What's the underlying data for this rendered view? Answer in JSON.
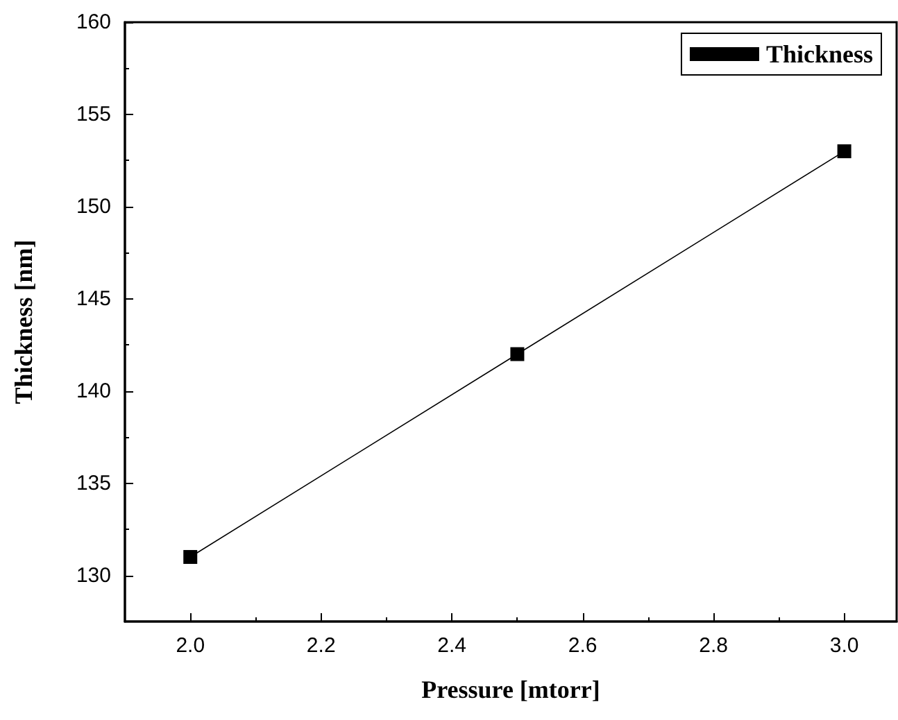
{
  "chart_data": {
    "type": "line",
    "xlabel": "Pressure [mtorr]",
    "ylabel": "Thickness [nm]",
    "x": [
      2.0,
      2.5,
      3.0
    ],
    "series": [
      {
        "name": "Thickness",
        "color": "#000000",
        "values": [
          131,
          142,
          153
        ]
      }
    ],
    "xlim": [
      1.9,
      3.08
    ],
    "xticks": [
      {
        "value": 2,
        "label": "2.0"
      },
      2.2,
      2.4,
      2.6,
      2.8,
      {
        "value": 3,
        "label": "3.0"
      }
    ],
    "ylim": [
      127.5,
      160
    ],
    "yticks": [
      130,
      135,
      140,
      145,
      150,
      155,
      160
    ],
    "grid": false,
    "legend": "top right",
    "marker": "square",
    "line_style": "solid"
  }
}
